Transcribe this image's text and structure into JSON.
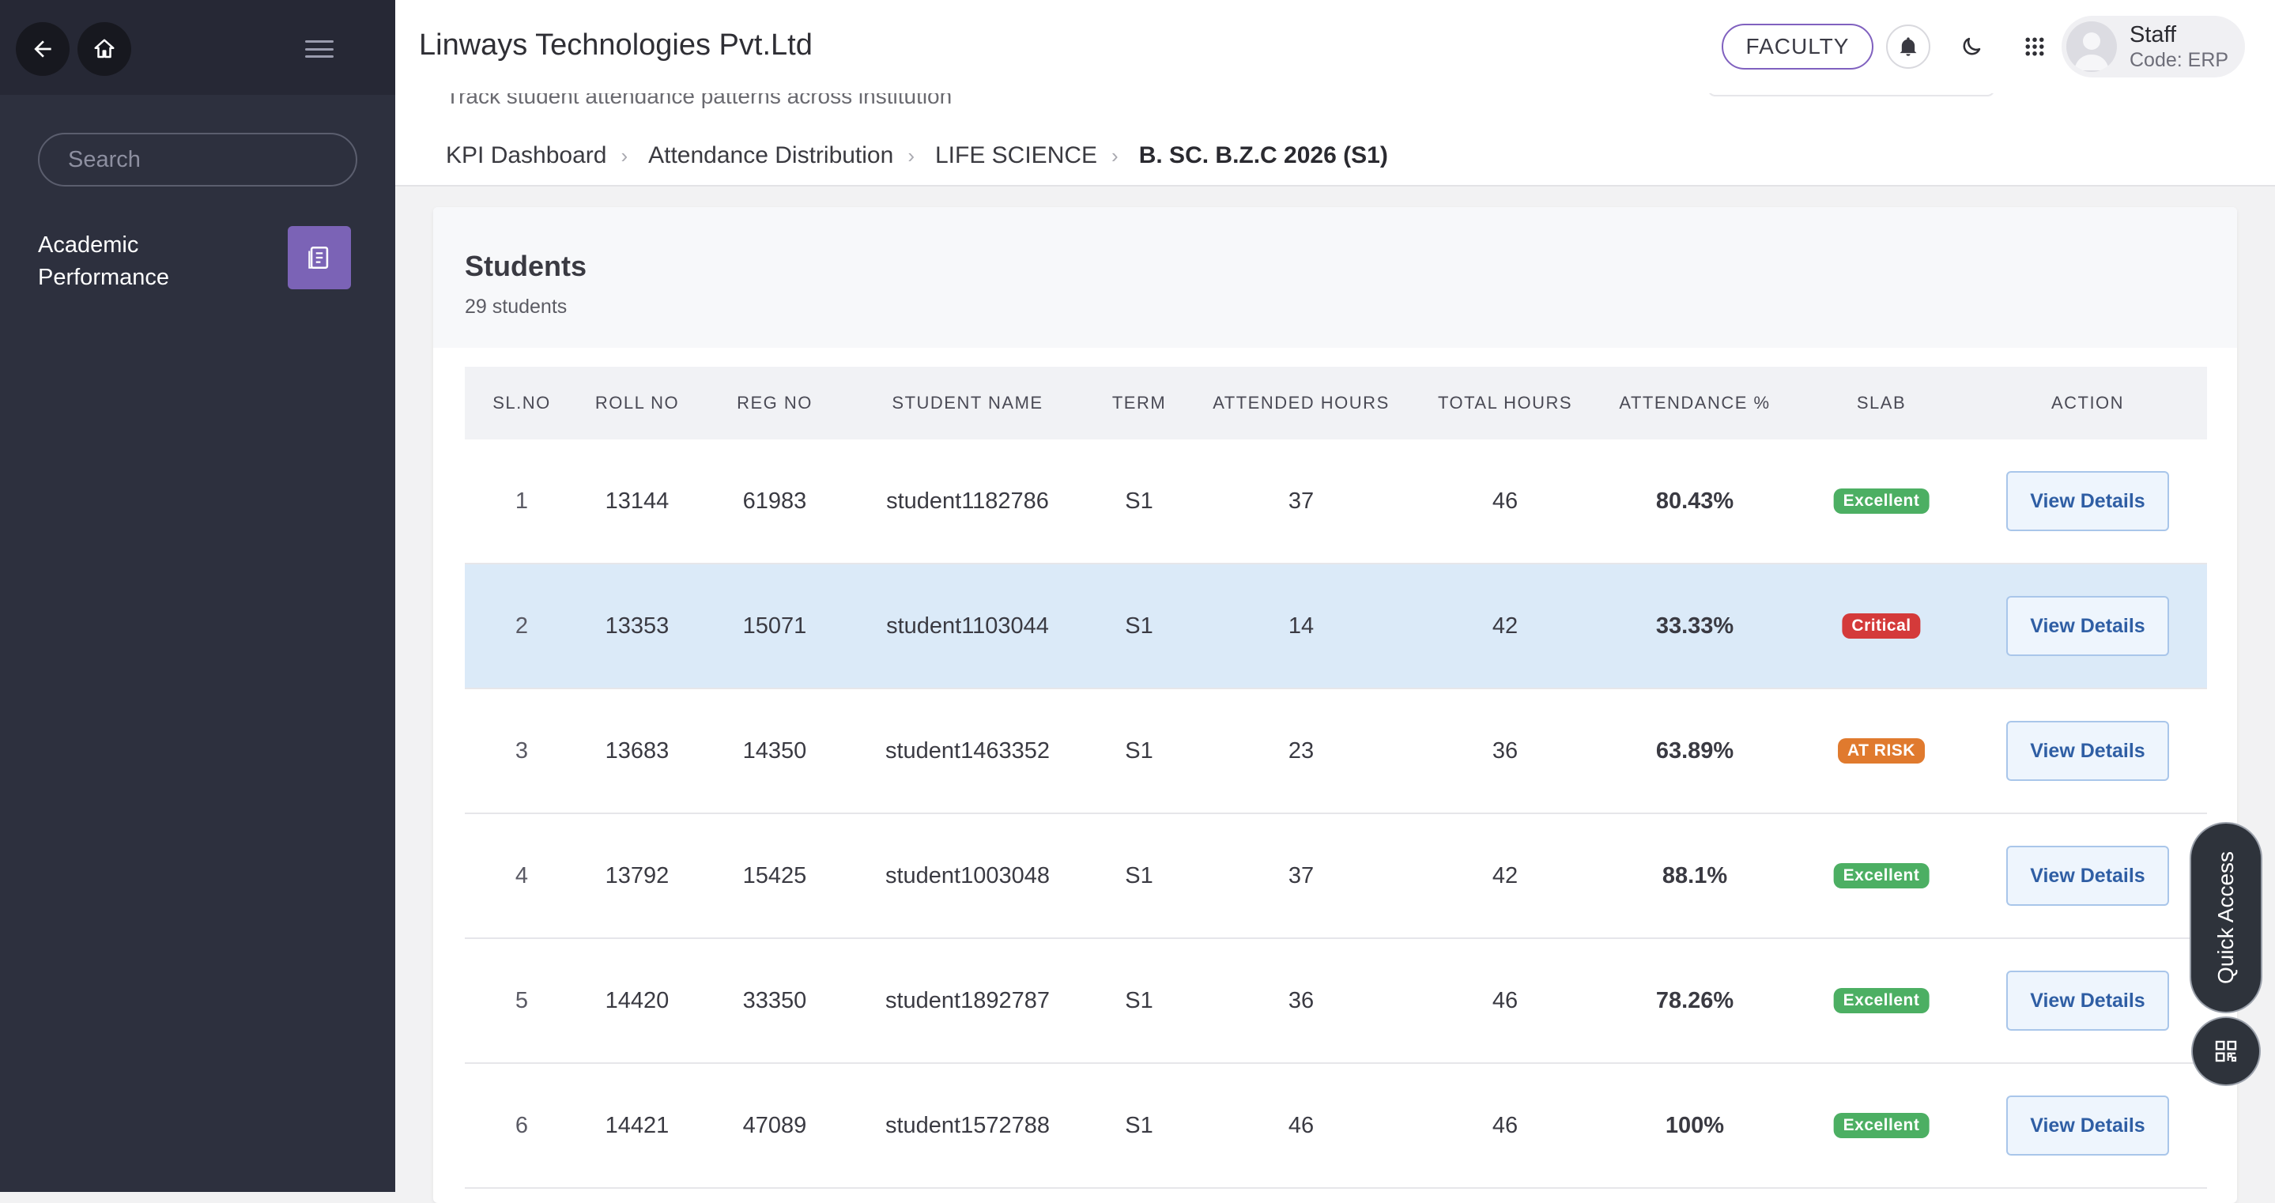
{
  "sidebar": {
    "search_placeholder": "Search",
    "items": [
      {
        "label": "Academic Performance",
        "icon": "report-icon"
      }
    ]
  },
  "header": {
    "org_name": "Linways Technologies Pvt.Ltd",
    "role_button": "FACULTY",
    "user": {
      "name": "Staff",
      "code": "Code: ERP"
    }
  },
  "subheader": {
    "subtitle": "Track student attendance patterns across institution",
    "breadcrumb": [
      "KPI Dashboard",
      "Attendance Distribution",
      "LIFE SCIENCE",
      "B. SC. B.Z.C 2026 (S1)"
    ]
  },
  "card": {
    "title": "Students",
    "count_label": "29 students"
  },
  "table": {
    "columns": [
      "SL.NO",
      "ROLL NO",
      "REG NO",
      "STUDENT NAME",
      "TERM",
      "ATTENDED HOURS",
      "TOTAL HOURS",
      "ATTENDANCE %",
      "SLAB",
      "ACTION"
    ],
    "action_label": "View Details",
    "rows": [
      {
        "sl": "1",
        "roll": "13144",
        "reg": "61983",
        "name": "student1182786",
        "term": "S1",
        "attended": "37",
        "total": "46",
        "pct": "80.43%",
        "slab": "Excellent",
        "highlighted": false
      },
      {
        "sl": "2",
        "roll": "13353",
        "reg": "15071",
        "name": "student1103044",
        "term": "S1",
        "attended": "14",
        "total": "42",
        "pct": "33.33%",
        "slab": "Critical",
        "highlighted": true
      },
      {
        "sl": "3",
        "roll": "13683",
        "reg": "14350",
        "name": "student1463352",
        "term": "S1",
        "attended": "23",
        "total": "36",
        "pct": "63.89%",
        "slab": "AT RISK",
        "highlighted": false
      },
      {
        "sl": "4",
        "roll": "13792",
        "reg": "15425",
        "name": "student1003048",
        "term": "S1",
        "attended": "37",
        "total": "42",
        "pct": "88.1%",
        "slab": "Excellent",
        "highlighted": false
      },
      {
        "sl": "5",
        "roll": "14420",
        "reg": "33350",
        "name": "student1892787",
        "term": "S1",
        "attended": "36",
        "total": "46",
        "pct": "78.26%",
        "slab": "Excellent",
        "highlighted": false
      },
      {
        "sl": "6",
        "roll": "14421",
        "reg": "47089",
        "name": "student1572788",
        "term": "S1",
        "attended": "46",
        "total": "46",
        "pct": "100%",
        "slab": "Excellent",
        "highlighted": false
      }
    ]
  },
  "slab_colors": {
    "Excellent": "#4caf63",
    "Critical": "#d43a3a",
    "AT RISK": "#e07a2e"
  },
  "quick_access": {
    "label": "Quick Access"
  }
}
